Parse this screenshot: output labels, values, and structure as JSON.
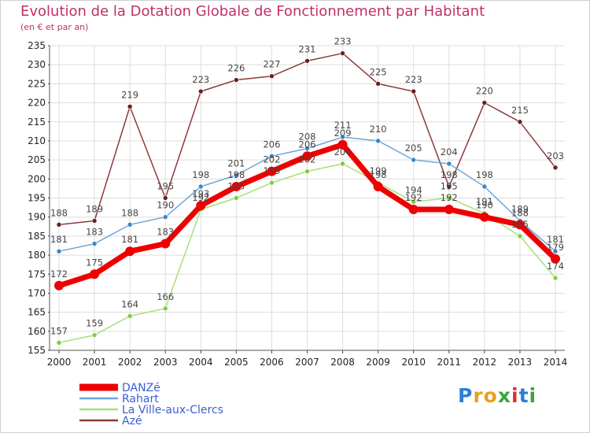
{
  "title": "Evolution de la Dotation Globale de Fonctionnement par Habitant",
  "subtitle": "(en € et par an)",
  "logo": {
    "letters": [
      {
        "ch": "P",
        "color": "#2a7fd4"
      },
      {
        "ch": "r",
        "color": "#e8a020"
      },
      {
        "ch": "o",
        "color": "#e8a020"
      },
      {
        "ch": "x",
        "color": "#3aa63a"
      },
      {
        "ch": "i",
        "color": "#d93030"
      },
      {
        "ch": "t",
        "color": "#2a7fd4"
      },
      {
        "ch": "i",
        "color": "#3aa63a"
      }
    ]
  },
  "chart_data": {
    "type": "line",
    "x": [
      "2000",
      "2001",
      "2002",
      "2003",
      "2004",
      "2005",
      "2006",
      "2007",
      "2008",
      "2009",
      "2010",
      "2011",
      "2012",
      "2013",
      "2014"
    ],
    "ylim": [
      155,
      235
    ],
    "yticks": [
      "155",
      "160",
      "165",
      "170",
      "175",
      "180",
      "185",
      "190",
      "195",
      "200",
      "205",
      "210",
      "215",
      "220",
      "225",
      "230",
      "235"
    ],
    "grid": true,
    "legend_position": "bottom-left",
    "series": [
      {
        "name": "DANZé",
        "color": "#ee0000",
        "point_color": "#ee0000",
        "width": 7,
        "point_radius": 6,
        "values": [
          172,
          175,
          181,
          183,
          193,
          198,
          202,
          206,
          209,
          198,
          192,
          192,
          190,
          188,
          179
        ],
        "labels": [
          "172",
          "175",
          "181",
          "183",
          "193",
          "198",
          "202",
          "206",
          "209",
          "198",
          "192",
          "192",
          "190",
          "188",
          "179"
        ]
      },
      {
        "name": "Rahart",
        "color": "#6fa6d8",
        "point_color": "#3a86c8",
        "width": 1.5,
        "point_radius": 3,
        "values": [
          181,
          183,
          188,
          190,
          198,
          201,
          206,
          208,
          211,
          210,
          205,
          204,
          198,
          189,
          181
        ],
        "labels": [
          "181",
          "183",
          "188",
          "190",
          "198",
          "201",
          "206",
          "208",
          "211",
          "210",
          "205",
          "204",
          "198",
          "189",
          "181"
        ]
      },
      {
        "name": "La Ville-aux-Clercs",
        "color": "#a6e07a",
        "point_color": "#7ccf3c",
        "width": 1.5,
        "point_radius": 3,
        "values": [
          157,
          159,
          164,
          166,
          192,
          195,
          199,
          202,
          204,
          199,
          194,
          195,
          191,
          185,
          174
        ],
        "labels": [
          "157",
          "159",
          "164",
          "166",
          "192",
          "195",
          "199",
          "202",
          "204",
          "199",
          "194",
          "195",
          "191",
          "185",
          "174"
        ]
      },
      {
        "name": "Azé",
        "color": "#8a3a3a",
        "point_color": "#6a1f1f",
        "width": 1.5,
        "point_radius": 3,
        "values": [
          188,
          189,
          219,
          195,
          223,
          226,
          227,
          231,
          233,
          225,
          223,
          198,
          220,
          215,
          203
        ],
        "labels": [
          "188",
          "189",
          "219",
          "195",
          "223",
          "226",
          "227",
          "231",
          "233",
          "225",
          "223",
          "198",
          "220",
          "215",
          "203"
        ]
      }
    ]
  }
}
